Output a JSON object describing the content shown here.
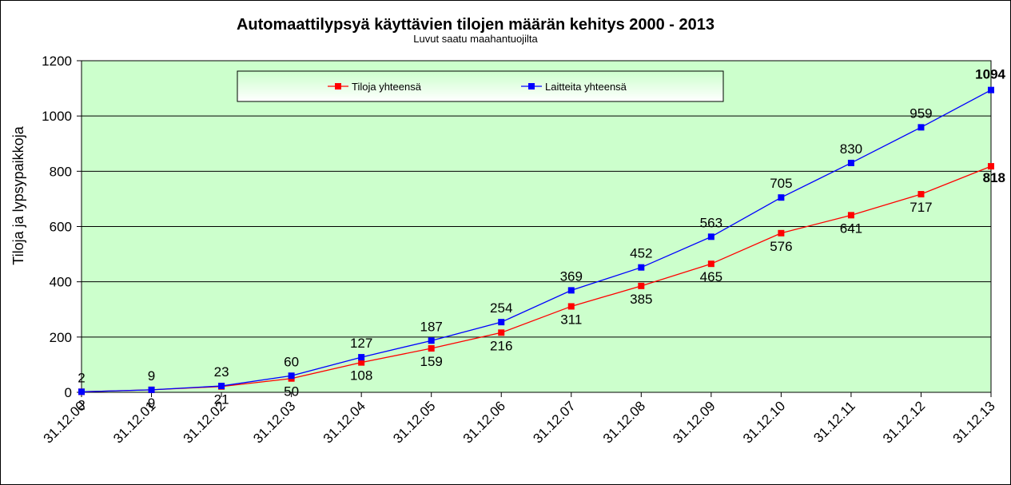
{
  "chart_data": {
    "type": "line",
    "title": "Automaattilypsyä käyttävien tilojen määrän kehitys 2000 - 2013",
    "subtitle": "Luvut  saatu maahantuojilta",
    "xlabel": "",
    "ylabel": "Tiloja ja lypsypaikkoja",
    "ylim": [
      0,
      1200
    ],
    "yticks": [
      0,
      200,
      400,
      600,
      800,
      1000,
      1200
    ],
    "categories": [
      "31.12.00",
      "31.12.01",
      "31.12.02",
      "31.12.03",
      "31.12.04",
      "31.12.05",
      "31.12.06",
      "31.12.07",
      "31.12.08",
      "31.12.09",
      "31.12.10",
      "31.12.11",
      "31.12.12",
      "31.12.13"
    ],
    "series": [
      {
        "name": "Tiloja yhteensä",
        "color": "#ff0000",
        "values": [
          2,
          9,
          21,
          50,
          108,
          159,
          216,
          311,
          385,
          465,
          576,
          641,
          717,
          818
        ]
      },
      {
        "name": "Laitteita yhteensä",
        "color": "#0000ff",
        "values": [
          2,
          9,
          23,
          60,
          127,
          187,
          254,
          369,
          452,
          563,
          705,
          830,
          959,
          1094
        ]
      }
    ],
    "grid": true,
    "plot_background": "#ccffcc",
    "legend_position": "top"
  }
}
